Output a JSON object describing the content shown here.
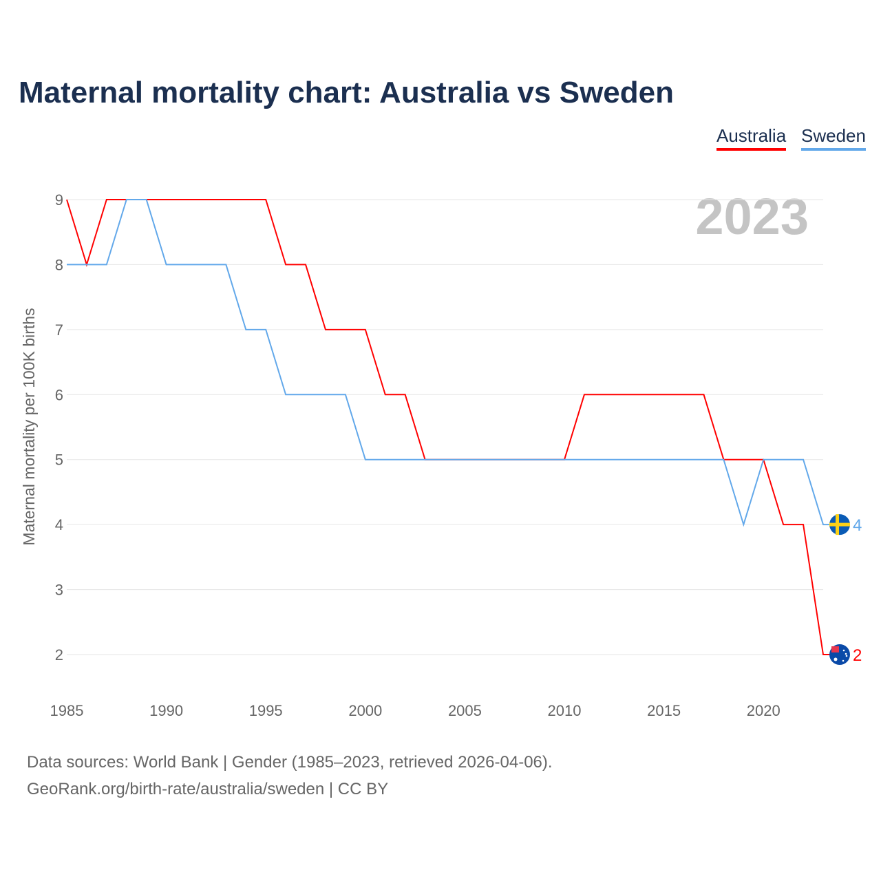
{
  "title": "Maternal mortality chart: Australia vs Sweden",
  "legend": [
    "Australia",
    "Sweden"
  ],
  "year_watermark": "2023",
  "source_line1": "Data sources: World Bank | Gender (1985–2023, retrieved 2026-04-06).",
  "source_line2": "GeoRank.org/birth-rate/australia/sweden | CC BY",
  "chart_data": {
    "type": "line",
    "title": "Maternal mortality chart: Australia vs Sweden",
    "xlabel": "",
    "ylabel": "Maternal mortality per 100K births",
    "xlim": [
      1985,
      2023
    ],
    "ylim": [
      2,
      9
    ],
    "xticks": [
      1985,
      1990,
      1995,
      2000,
      2005,
      2010,
      2015,
      2020
    ],
    "yticks": [
      2,
      3,
      4,
      5,
      6,
      7,
      8,
      9
    ],
    "grid": true,
    "legend_position": "top-right",
    "x": [
      1985,
      1986,
      1987,
      1988,
      1989,
      1990,
      1991,
      1992,
      1993,
      1994,
      1995,
      1996,
      1997,
      1998,
      1999,
      2000,
      2001,
      2002,
      2003,
      2004,
      2005,
      2006,
      2007,
      2008,
      2009,
      2010,
      2011,
      2012,
      2013,
      2014,
      2015,
      2016,
      2017,
      2018,
      2019,
      2020,
      2021,
      2022,
      2023
    ],
    "series": [
      {
        "name": "Australia",
        "color": "#ff0000",
        "end_label": "2",
        "values": [
          9,
          8,
          9,
          9,
          9,
          9,
          9,
          9,
          9,
          9,
          9,
          8,
          8,
          7,
          7,
          7,
          6,
          6,
          5,
          5,
          5,
          5,
          5,
          5,
          5,
          5,
          6,
          6,
          6,
          6,
          6,
          6,
          6,
          5,
          5,
          5,
          4,
          4,
          2
        ]
      },
      {
        "name": "Sweden",
        "color": "#62a8ea",
        "end_label": "4",
        "values": [
          8,
          8,
          8,
          9,
          9,
          8,
          8,
          8,
          8,
          7,
          7,
          6,
          6,
          6,
          6,
          5,
          5,
          5,
          5,
          5,
          5,
          5,
          5,
          5,
          5,
          5,
          5,
          5,
          5,
          5,
          5,
          5,
          5,
          5,
          4,
          5,
          5,
          5,
          4
        ]
      }
    ]
  }
}
